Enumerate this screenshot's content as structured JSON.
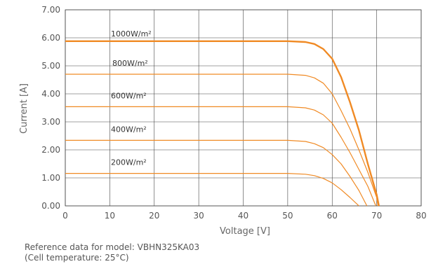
{
  "chart_data": {
    "type": "line",
    "xlabel": "Voltage [V]",
    "ylabel": "Current [A]",
    "xlim": [
      0,
      80
    ],
    "ylim": [
      0,
      7
    ],
    "x_ticks": [
      "0",
      "10",
      "20",
      "30",
      "40",
      "50",
      "60",
      "70",
      "80"
    ],
    "y_ticks": [
      "0.00",
      "1.00",
      "2.00",
      "3.00",
      "4.00",
      "5.00",
      "6.00",
      "7.00"
    ],
    "grid": true,
    "line_color": "#f08a24",
    "series": [
      {
        "name": "1000W/m²",
        "x": [
          0,
          50,
          54,
          56,
          58,
          60,
          62,
          64,
          66,
          68,
          70,
          70.5
        ],
        "y": [
          5.88,
          5.88,
          5.85,
          5.78,
          5.6,
          5.25,
          4.6,
          3.7,
          2.7,
          1.5,
          0.4,
          0
        ]
      },
      {
        "name": "800W/m²",
        "x": [
          0,
          50,
          54,
          56,
          58,
          60,
          62,
          64,
          66,
          68,
          70,
          70.3
        ],
        "y": [
          4.7,
          4.7,
          4.66,
          4.57,
          4.38,
          4.0,
          3.4,
          2.75,
          2.0,
          1.2,
          0.3,
          0
        ]
      },
      {
        "name": "600W/m²",
        "x": [
          0,
          50,
          54,
          56,
          58,
          60,
          62,
          64,
          66,
          68,
          69.8
        ],
        "y": [
          3.54,
          3.54,
          3.5,
          3.42,
          3.25,
          2.95,
          2.45,
          1.9,
          1.3,
          0.7,
          0
        ]
      },
      {
        "name": "400W/m²",
        "x": [
          0,
          50,
          54,
          56,
          58,
          60,
          62,
          64,
          66,
          67.8
        ],
        "y": [
          2.34,
          2.34,
          2.3,
          2.22,
          2.08,
          1.83,
          1.5,
          1.05,
          0.55,
          0
        ]
      },
      {
        "name": "200W/m²",
        "x": [
          0,
          50,
          54,
          56,
          58,
          60,
          62,
          64,
          66
        ],
        "y": [
          1.16,
          1.16,
          1.13,
          1.08,
          0.98,
          0.82,
          0.58,
          0.3,
          0
        ]
      }
    ]
  },
  "notes": {
    "line1": "Reference data for model: VBHN325KA03",
    "line2": "(Cell temperature: 25°C)"
  }
}
